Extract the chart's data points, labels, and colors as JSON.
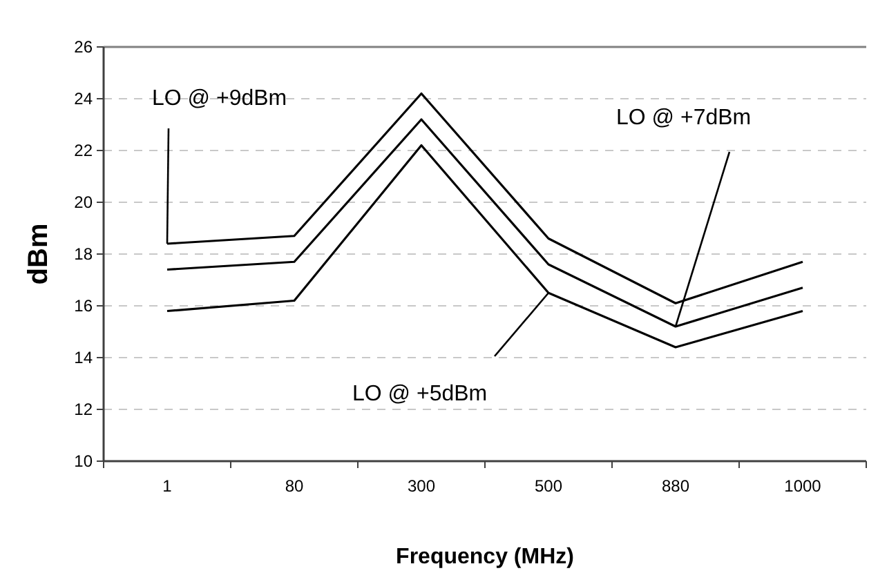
{
  "chart_data": {
    "type": "line",
    "xlabel": "Frequency (MHz)",
    "ylabel": "dBm",
    "categories": [
      "1",
      "80",
      "300",
      "500",
      "880",
      "1000"
    ],
    "ylim": [
      10,
      26
    ],
    "yticks": [
      10,
      12,
      14,
      16,
      18,
      20,
      22,
      24,
      26
    ],
    "grid": "y",
    "marker": "none",
    "line_style": "solid",
    "annotations": [
      {
        "text": "LO @ +9dBm",
        "x": "1",
        "y": 18.4
      },
      {
        "text": "LO @ +7dBm",
        "x": "880",
        "y": 15.2
      },
      {
        "text": "LO @ +5dBm",
        "x": "500",
        "y": 16.5
      }
    ],
    "series": [
      {
        "color": "#000000",
        "values": [
          18.4,
          18.7,
          24.2,
          18.6,
          16.1,
          17.7
        ]
      },
      {
        "color": "#000000",
        "values": [
          17.4,
          17.7,
          23.2,
          17.6,
          15.2,
          16.7
        ]
      },
      {
        "color": "#000000",
        "values": [
          15.8,
          16.2,
          22.2,
          16.5,
          14.4,
          15.8
        ]
      }
    ]
  }
}
